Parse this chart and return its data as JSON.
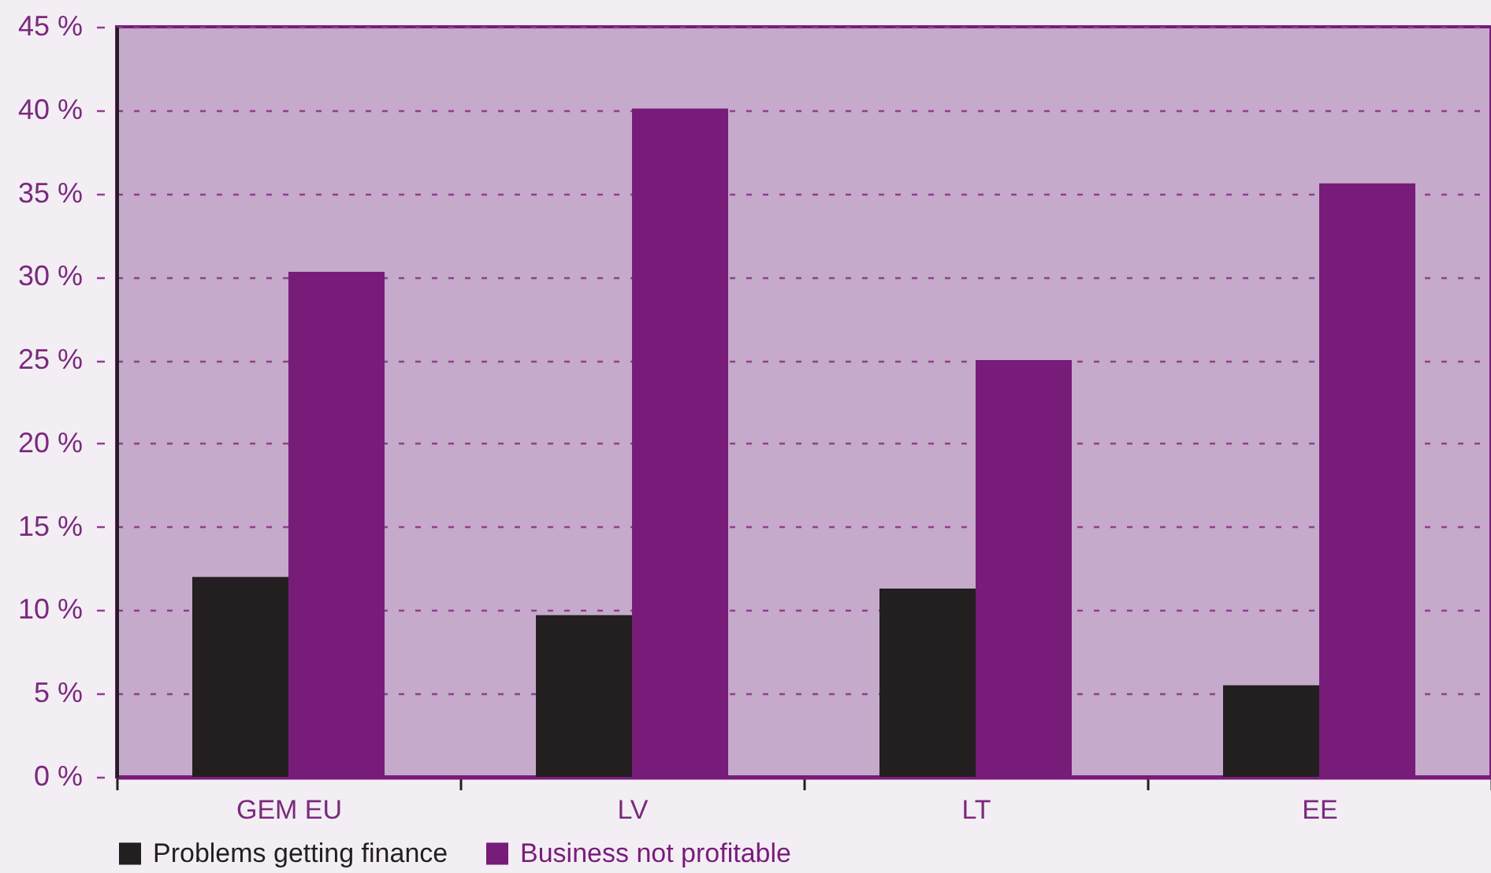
{
  "chart_data": {
    "type": "bar",
    "categories": [
      "GEM EU",
      "LV",
      "LT",
      "EE"
    ],
    "series": [
      {
        "name": "Problems getting finance",
        "color": "#231f20",
        "values": [
          12.0,
          9.7,
          11.3,
          5.5
        ]
      },
      {
        "name": "Business not profitable",
        "color": "#781c7a",
        "values": [
          30.3,
          40.1,
          25.0,
          35.6
        ]
      }
    ],
    "ylim": [
      0,
      45
    ],
    "yticks": [
      {
        "value": 0,
        "label": "0 %"
      },
      {
        "value": 5,
        "label": "5 %"
      },
      {
        "value": 10,
        "label": "10 %"
      },
      {
        "value": 15,
        "label": "15 %"
      },
      {
        "value": 20,
        "label": "20 %"
      },
      {
        "value": 25,
        "label": "25 %"
      },
      {
        "value": 30,
        "label": "30 %"
      },
      {
        "value": 35,
        "label": "35 %"
      },
      {
        "value": 40,
        "label": "40 %"
      },
      {
        "value": 45,
        "label": "45 %"
      }
    ],
    "grid": "y",
    "legend": "bottom left"
  }
}
